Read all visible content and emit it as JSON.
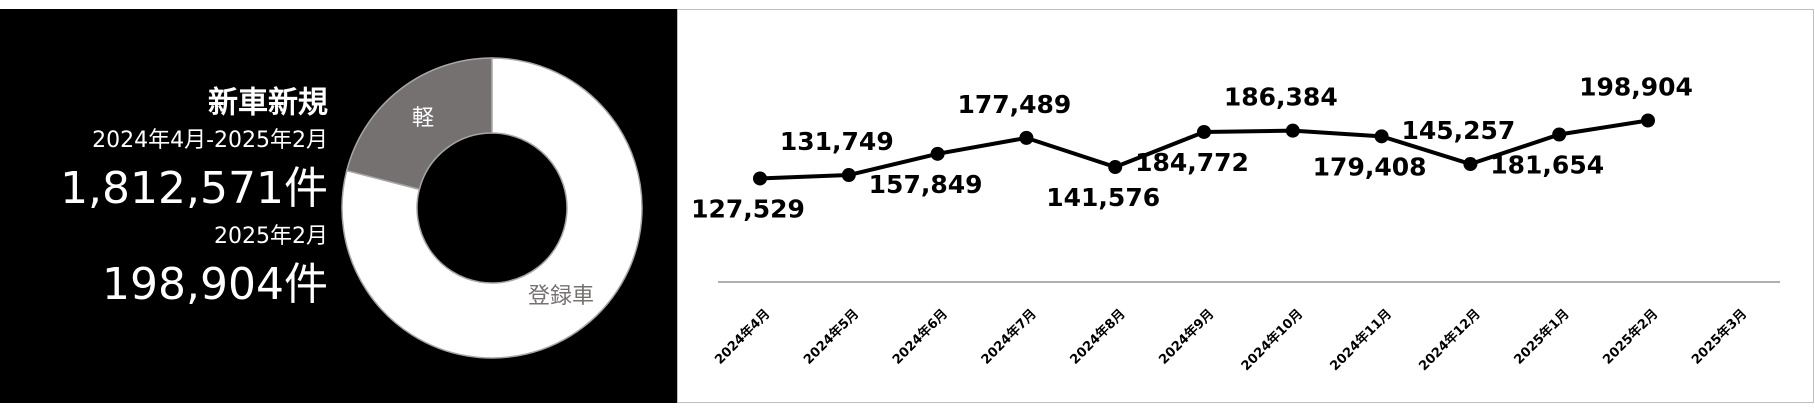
{
  "summary": {
    "title": "新車新規",
    "period": "2024年4月-2025年2月",
    "period_total": "1,812,571件",
    "month": "2025年2月",
    "month_total": "198,904件"
  },
  "chart_data": [
    {
      "type": "donut",
      "categories": [
        "軽",
        "登録車"
      ],
      "values": [
        21,
        79
      ],
      "colors": [
        "#767171",
        "#ffffff"
      ]
    },
    {
      "type": "line",
      "categories": [
        "2024年4月",
        "2024年5月",
        "2024年6月",
        "2024年7月",
        "2024年8月",
        "2024年9月",
        "2024年10月",
        "2024年11月",
        "2024年12月",
        "2025年1月",
        "2025年2月",
        "2025年3月"
      ],
      "values": [
        127529,
        131749,
        157849,
        177489,
        141576,
        184772,
        186384,
        179408,
        145257,
        181654,
        198904,
        null
      ],
      "value_labels": [
        "127,529",
        "131,749",
        "157,849",
        "177,489",
        "141,576",
        "184,772",
        "186,384",
        "179,408",
        "145,257",
        "181,654",
        "198,904",
        null
      ],
      "color": "#000000",
      "ylim": [
        0,
        250000
      ]
    }
  ]
}
